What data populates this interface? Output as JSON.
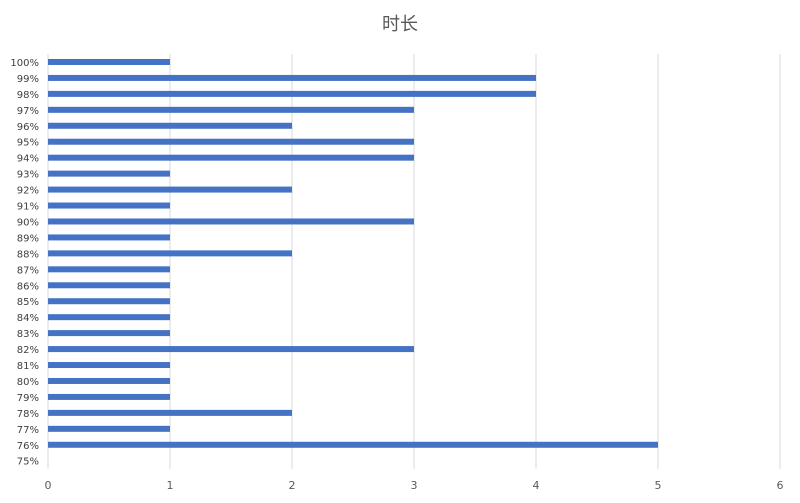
{
  "chart_data": {
    "type": "bar",
    "orientation": "horizontal",
    "title": "时长",
    "xlabel": "",
    "ylabel": "",
    "xlim": [
      0,
      6
    ],
    "x_ticks": [
      "0",
      "1",
      "2",
      "3",
      "4",
      "5",
      "6"
    ],
    "grid": "vertical",
    "legend": "none",
    "bar_color": "#4472C4",
    "categories": [
      "100%",
      "99%",
      "98%",
      "97%",
      "96%",
      "95%",
      "94%",
      "93%",
      "92%",
      "91%",
      "90%",
      "89%",
      "88%",
      "87%",
      "86%",
      "85%",
      "84%",
      "83%",
      "82%",
      "81%",
      "80%",
      "79%",
      "78%",
      "77%",
      "76%",
      "75%"
    ],
    "values": [
      1,
      4,
      4,
      3,
      2,
      3,
      3,
      1,
      2,
      1,
      3,
      1,
      2,
      1,
      1,
      1,
      1,
      1,
      3,
      1,
      1,
      1,
      2,
      1,
      5,
      0
    ]
  }
}
